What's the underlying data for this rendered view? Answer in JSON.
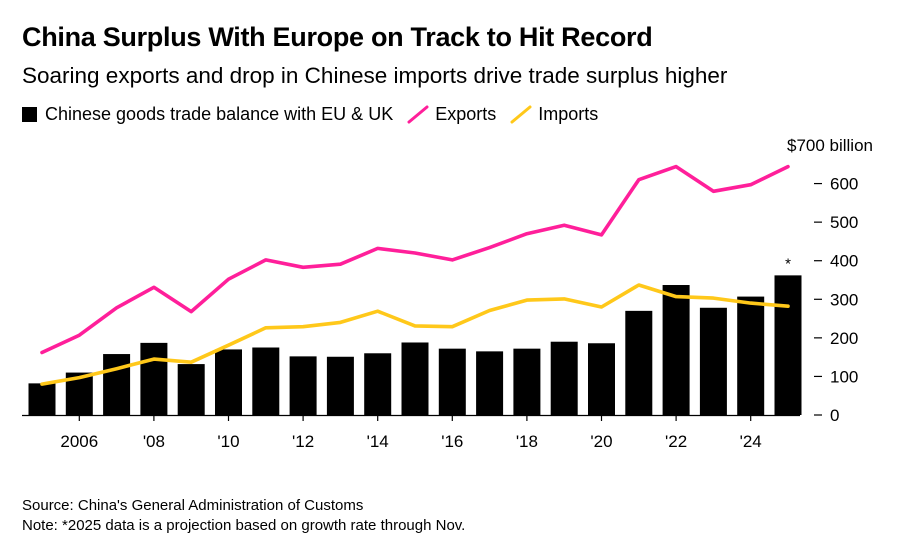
{
  "title": "China Surplus With Europe on Track to Hit Record",
  "subtitle": "Soaring exports and drop in Chinese imports drive trade surplus higher",
  "colors": {
    "balance": "#000000",
    "exports": "#ff1f9a",
    "imports": "#ffc81a"
  },
  "chart_data": {
    "type": "bar",
    "years": [
      2005,
      2006,
      2007,
      2008,
      2009,
      2010,
      2011,
      2012,
      2013,
      2014,
      2015,
      2016,
      2017,
      2018,
      2019,
      2020,
      2021,
      2022,
      2023,
      2024,
      2025
    ],
    "series": [
      {
        "name": "Chinese goods trade balance with EU & UK",
        "type": "bar",
        "values": [
          82,
          110,
          158,
          187,
          132,
          170,
          175,
          152,
          151,
          160,
          188,
          172,
          165,
          172,
          190,
          186,
          270,
          337,
          278,
          307,
          362
        ]
      },
      {
        "name": "Exports",
        "type": "line",
        "values": [
          162,
          207,
          278,
          331,
          268,
          352,
          402,
          383,
          391,
          432,
          420,
          402,
          434,
          470,
          492,
          467,
          610,
          644,
          580,
          597,
          644
        ]
      },
      {
        "name": "Imports",
        "type": "line",
        "values": [
          80,
          97,
          120,
          145,
          137,
          181,
          226,
          229,
          240,
          269,
          231,
          229,
          271,
          298,
          301,
          280,
          337,
          307,
          303,
          290,
          282
        ]
      }
    ],
    "x_ticks": [
      {
        "value": 2006,
        "label": "2006"
      },
      {
        "value": 2008,
        "label": "'08"
      },
      {
        "value": 2010,
        "label": "'10"
      },
      {
        "value": 2012,
        "label": "'12"
      },
      {
        "value": 2014,
        "label": "'14"
      },
      {
        "value": 2016,
        "label": "'16"
      },
      {
        "value": 2018,
        "label": "'18"
      },
      {
        "value": 2020,
        "label": "'20"
      },
      {
        "value": 2022,
        "label": "'22"
      },
      {
        "value": 2024,
        "label": "'24"
      }
    ],
    "y_ticks": [
      {
        "value": 0,
        "label": "0"
      },
      {
        "value": 100,
        "label": "100"
      },
      {
        "value": 200,
        "label": "200"
      },
      {
        "value": 300,
        "label": "300"
      },
      {
        "value": 400,
        "label": "400"
      },
      {
        "value": 500,
        "label": "500"
      },
      {
        "value": 600,
        "label": "600"
      },
      {
        "value": 700,
        "label": "$700 billion"
      }
    ],
    "ylim": [
      0,
      700
    ],
    "annotation": {
      "year": 2025,
      "text": "*"
    },
    "legend_position": "top-left",
    "grid": false
  },
  "source": "Source: China's General Administration of Customs",
  "note": "Note: *2025 data is a projection based on growth rate through Nov."
}
